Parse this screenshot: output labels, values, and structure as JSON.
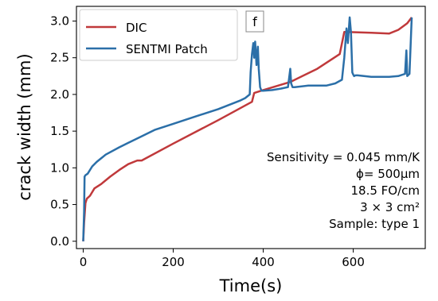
{
  "chart_data": {
    "type": "line",
    "panel_label": "f",
    "xlabel": "Time(s)",
    "ylabel": "crack width (mm)",
    "xlim": [
      -15,
      760
    ],
    "ylim": [
      -0.1,
      3.2
    ],
    "xticks": [
      0,
      200,
      400,
      600
    ],
    "yticks": [
      0.0,
      0.5,
      1.0,
      1.5,
      2.0,
      2.5,
      3.0
    ],
    "xtick_labels": [
      "0",
      "200",
      "400",
      "600"
    ],
    "ytick_labels": [
      "0.0",
      "0.5",
      "1.0",
      "1.5",
      "2.0",
      "2.5",
      "3.0"
    ],
    "grid": false,
    "legend_position": "top-left",
    "series": [
      {
        "name": "DIC",
        "color": "#c0393b",
        "x": [
          0,
          2,
          5,
          8,
          15,
          25,
          40,
          60,
          80,
          100,
          120,
          130,
          200,
          300,
          375,
          380,
          400,
          460,
          520,
          570,
          580,
          585,
          640,
          680,
          700,
          720,
          730
        ],
        "y": [
          0.0,
          0.25,
          0.52,
          0.58,
          0.62,
          0.72,
          0.78,
          0.88,
          0.97,
          1.05,
          1.1,
          1.1,
          1.33,
          1.65,
          1.9,
          2.02,
          2.06,
          2.17,
          2.35,
          2.55,
          2.85,
          2.85,
          2.84,
          2.83,
          2.88,
          2.97,
          3.05
        ]
      },
      {
        "name": "SENTMI Patch",
        "color": "#2b6fa8",
        "x": [
          0,
          2,
          3,
          5,
          10,
          20,
          30,
          50,
          80,
          100,
          130,
          160,
          200,
          250,
          300,
          350,
          360,
          370,
          372,
          375,
          378,
          380,
          382,
          385,
          388,
          390,
          393,
          396,
          400,
          420,
          440,
          455,
          460,
          462,
          465,
          470,
          500,
          540,
          560,
          575,
          580,
          585,
          588,
          592,
          595,
          598,
          600,
          602,
          605,
          610,
          640,
          680,
          700,
          715,
          718,
          720,
          725,
          730
        ],
        "y": [
          0.0,
          0.4,
          0.88,
          0.9,
          0.92,
          1.02,
          1.08,
          1.18,
          1.28,
          1.34,
          1.43,
          1.52,
          1.6,
          1.7,
          1.8,
          1.92,
          1.95,
          2.0,
          2.3,
          2.55,
          2.7,
          2.5,
          2.72,
          2.4,
          2.65,
          2.35,
          2.1,
          2.05,
          2.05,
          2.06,
          2.08,
          2.1,
          2.35,
          2.15,
          2.1,
          2.1,
          2.12,
          2.12,
          2.15,
          2.2,
          2.5,
          2.9,
          2.7,
          3.05,
          2.85,
          2.3,
          2.27,
          2.25,
          2.26,
          2.26,
          2.24,
          2.24,
          2.25,
          2.28,
          2.6,
          2.25,
          2.28,
          3.05
        ]
      }
    ],
    "annotations": [
      "Sensitivity = 0.045 mm/K",
      "ϕ= 500μm",
      "18.5 FO/cm",
      "3 × 3 cm²",
      "Sample: type 1"
    ]
  }
}
